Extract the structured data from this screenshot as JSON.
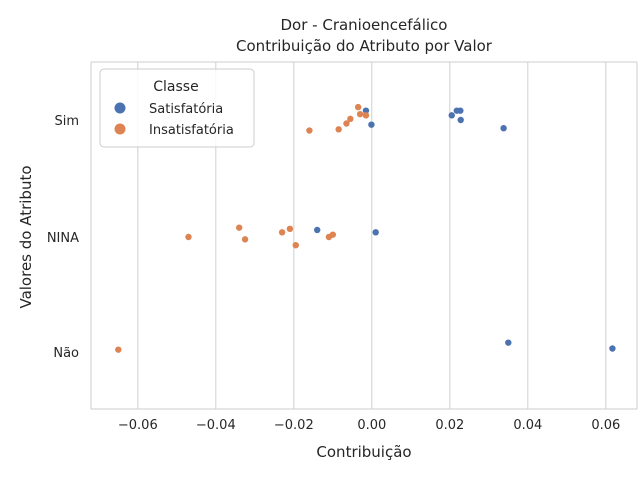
{
  "chart_data": {
    "type": "scatter",
    "title": "Dor - Cranioencefálico",
    "subtitle": "Contribuição do Atributo por Valor",
    "xlabel": "Contribuição",
    "ylabel": "Valores do Atributo",
    "xlim": [
      -0.072,
      0.068
    ],
    "x_ticks": [
      -0.06,
      -0.04,
      -0.02,
      0.0,
      0.02,
      0.04,
      0.06
    ],
    "x_tick_labels": [
      "−0.06",
      "−0.04",
      "−0.02",
      "0.00",
      "0.02",
      "0.04",
      "0.06"
    ],
    "categories": [
      "Sim",
      "NINA",
      "Não"
    ],
    "grid": "vertical",
    "legend": {
      "title": "Classe",
      "position": "top-left"
    },
    "series": [
      {
        "name": "Satisfatória",
        "color": "#4c72b0",
        "points": [
          {
            "x": -0.0015,
            "cat": "Sim",
            "jitter": -0.08
          },
          {
            "x": 0.0218,
            "cat": "Sim",
            "jitter": -0.08
          },
          {
            "x": 0.0227,
            "cat": "Sim",
            "jitter": -0.08
          },
          {
            "x": 0.0205,
            "cat": "Sim",
            "jitter": -0.04
          },
          {
            "x": 0.0228,
            "cat": "Sim",
            "jitter": 0.0
          },
          {
            "x": -0.0001,
            "cat": "Sim",
            "jitter": 0.04
          },
          {
            "x": 0.0338,
            "cat": "Sim",
            "jitter": 0.07
          },
          {
            "x": -0.014,
            "cat": "NINA",
            "jitter": -0.06
          },
          {
            "x": 0.001,
            "cat": "NINA",
            "jitter": -0.04
          },
          {
            "x": 0.035,
            "cat": "Não",
            "jitter": -0.08
          },
          {
            "x": 0.0617,
            "cat": "Não",
            "jitter": -0.03
          }
        ]
      },
      {
        "name": "Insatisfatória",
        "color": "#dd8452",
        "points": [
          {
            "x": -0.0035,
            "cat": "Sim",
            "jitter": -0.11
          },
          {
            "x": -0.003,
            "cat": "Sim",
            "jitter": -0.05
          },
          {
            "x": -0.0015,
            "cat": "Sim",
            "jitter": -0.04
          },
          {
            "x": -0.0055,
            "cat": "Sim",
            "jitter": -0.01
          },
          {
            "x": -0.0065,
            "cat": "Sim",
            "jitter": 0.03
          },
          {
            "x": -0.0085,
            "cat": "Sim",
            "jitter": 0.08
          },
          {
            "x": -0.016,
            "cat": "Sim",
            "jitter": 0.09
          },
          {
            "x": -0.034,
            "cat": "NINA",
            "jitter": -0.08
          },
          {
            "x": -0.021,
            "cat": "NINA",
            "jitter": -0.07
          },
          {
            "x": -0.023,
            "cat": "NINA",
            "jitter": -0.04
          },
          {
            "x": -0.01,
            "cat": "NINA",
            "jitter": -0.02
          },
          {
            "x": -0.011,
            "cat": "NINA",
            "jitter": 0.0
          },
          {
            "x": -0.047,
            "cat": "NINA",
            "jitter": 0.0
          },
          {
            "x": -0.0325,
            "cat": "NINA",
            "jitter": 0.02
          },
          {
            "x": -0.0195,
            "cat": "NINA",
            "jitter": 0.07
          },
          {
            "x": -0.065,
            "cat": "Não",
            "jitter": -0.02
          }
        ]
      }
    ]
  }
}
